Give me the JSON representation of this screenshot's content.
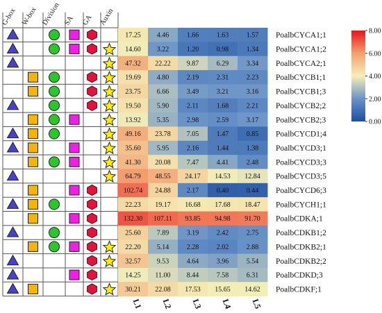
{
  "chart_data": {
    "type": "heatmap",
    "element_headers": [
      "G-box",
      "W-box",
      "Division",
      "SA",
      "GA",
      "Auxin"
    ],
    "element_legend": {
      "G-box": {
        "shape": "triangle",
        "color": "#4b3fd0"
      },
      "W-box": {
        "shape": "square",
        "color": "#f5b400"
      },
      "Division": {
        "shape": "circle",
        "color": "#28c828"
      },
      "SA": {
        "shape": "square",
        "color": "#f01ee6"
      },
      "GA": {
        "shape": "hexagon",
        "color": "#e8103c"
      },
      "Auxin": {
        "shape": "star",
        "color": "#ffee00"
      }
    },
    "columns": [
      "L1",
      "L2",
      "L3",
      "L4",
      "L5"
    ],
    "rows": [
      {
        "gene": "PoalbCYCA1;1",
        "values": [
          "17.25",
          "4.46",
          "1.66",
          "1.63",
          "1.57"
        ],
        "elements": [
          "G-box",
          "Division",
          "SA",
          "GA"
        ]
      },
      {
        "gene": "PoalbCYCA1;2",
        "values": [
          "14.60",
          "3.22",
          "1.20",
          "0.98",
          "1.34"
        ],
        "elements": [
          "G-box",
          "Division",
          "SA",
          "GA",
          "Auxin"
        ]
      },
      {
        "gene": "PoalbCYCA2;1",
        "values": [
          "47.32",
          "22.22",
          "9.87",
          "6.29",
          "3.34"
        ],
        "elements": [
          "G-box",
          "Auxin"
        ]
      },
      {
        "gene": "PoalbCYCB1;1",
        "values": [
          "19.69",
          "4.80",
          "2.19",
          "2.31",
          "2.23"
        ],
        "elements": [
          "W-box",
          "Division",
          "GA",
          "Auxin"
        ]
      },
      {
        "gene": "PoalbCYCB1;3",
        "values": [
          "23.75",
          "6.66",
          "3.49",
          "3.21",
          "3.16"
        ],
        "elements": [
          "W-box",
          "Division",
          "GA",
          "Auxin"
        ]
      },
      {
        "gene": "PoalbCYCB2;2",
        "values": [
          "19.50",
          "5.90",
          "2.11",
          "1.68",
          "2.21"
        ],
        "elements": [
          "G-box",
          "Division",
          "GA",
          "Auxin"
        ]
      },
      {
        "gene": "PoalbCYCB2;3",
        "values": [
          "13.92",
          "5.35",
          "2.98",
          "2.59",
          "3.17"
        ],
        "elements": [
          "W-box",
          "Division",
          "SA",
          "Auxin"
        ]
      },
      {
        "gene": "PoalbCYCD1;4",
        "values": [
          "49.16",
          "23.78",
          "7.05",
          "1.47",
          "0.85"
        ],
        "elements": [
          "G-box",
          "W-box",
          "Division",
          "Auxin"
        ]
      },
      {
        "gene": "PoalbCYCD3;1",
        "values": [
          "35.60",
          "5.95",
          "2.16",
          "1.44",
          "1.38"
        ],
        "elements": [
          "G-box",
          "W-box",
          "SA",
          "Auxin"
        ]
      },
      {
        "gene": "PoalbCYCD3;3",
        "values": [
          "41.30",
          "20.08",
          "7.47",
          "4.41",
          "2.48"
        ],
        "elements": [
          "W-box",
          "Division",
          "SA",
          "Auxin"
        ]
      },
      {
        "gene": "PoalbCYCD3;5",
        "values": [
          "64.79",
          "48.55",
          "24.17",
          "14.53",
          "12.84"
        ],
        "elements": [
          "G-box",
          "Auxin"
        ]
      },
      {
        "gene": "PoalbCYCD6;3",
        "values": [
          "102.74",
          "24.88",
          "2.17",
          "0.40",
          "0.44"
        ],
        "elements": [
          "W-box",
          "SA",
          "GA"
        ]
      },
      {
        "gene": "PoalbCYCH1;1",
        "values": [
          "22.23",
          "19.17",
          "16.68",
          "17.68",
          "18.47"
        ],
        "elements": [
          "G-box",
          "W-box",
          "Division",
          "GA"
        ]
      },
      {
        "gene": "PoalbCDKA;1",
        "values": [
          "132.30",
          "107.11",
          "93.85",
          "94.98",
          "91.70"
        ],
        "elements": [
          "W-box",
          "SA",
          "GA"
        ]
      },
      {
        "gene": "PoalbCDKB1;2",
        "values": [
          "25.60",
          "7.89",
          "3.19",
          "2.42",
          "2.75"
        ],
        "elements": [
          "G-box",
          "Division",
          "GA"
        ]
      },
      {
        "gene": "PoalbCDKB2;1",
        "values": [
          "22.20",
          "5.14",
          "2.28",
          "2.02",
          "2.88"
        ],
        "elements": [
          "W-box",
          "Division",
          "SA",
          "GA",
          "Auxin"
        ]
      },
      {
        "gene": "PoalbCDKB2;2",
        "values": [
          "32.57",
          "9.53",
          "4.64",
          "3.96",
          "5.54"
        ],
        "elements": [
          "G-box",
          "GA",
          "Auxin"
        ]
      },
      {
        "gene": "PoalbCDKD;3",
        "values": [
          "14.25",
          "11.00",
          "8.44",
          "7.58",
          "6.31"
        ],
        "elements": [
          "G-box",
          "SA",
          "GA"
        ]
      },
      {
        "gene": "PoalbCDKF;1",
        "values": [
          "30.21",
          "22.08",
          "17.53",
          "15.65",
          "14.62"
        ],
        "elements": [
          "G-box",
          "W-box",
          "GA",
          "Auxin"
        ]
      }
    ],
    "colorbar": {
      "ticks": [
        "8.00",
        "6.00",
        "4.00",
        "2.00",
        "0.00"
      ],
      "range": [
        0,
        8
      ],
      "scale": "log2(value+1)",
      "colors": {
        "low": "#1d4fa0",
        "mid": "#f5efb8",
        "high": "#e8141c"
      }
    }
  }
}
